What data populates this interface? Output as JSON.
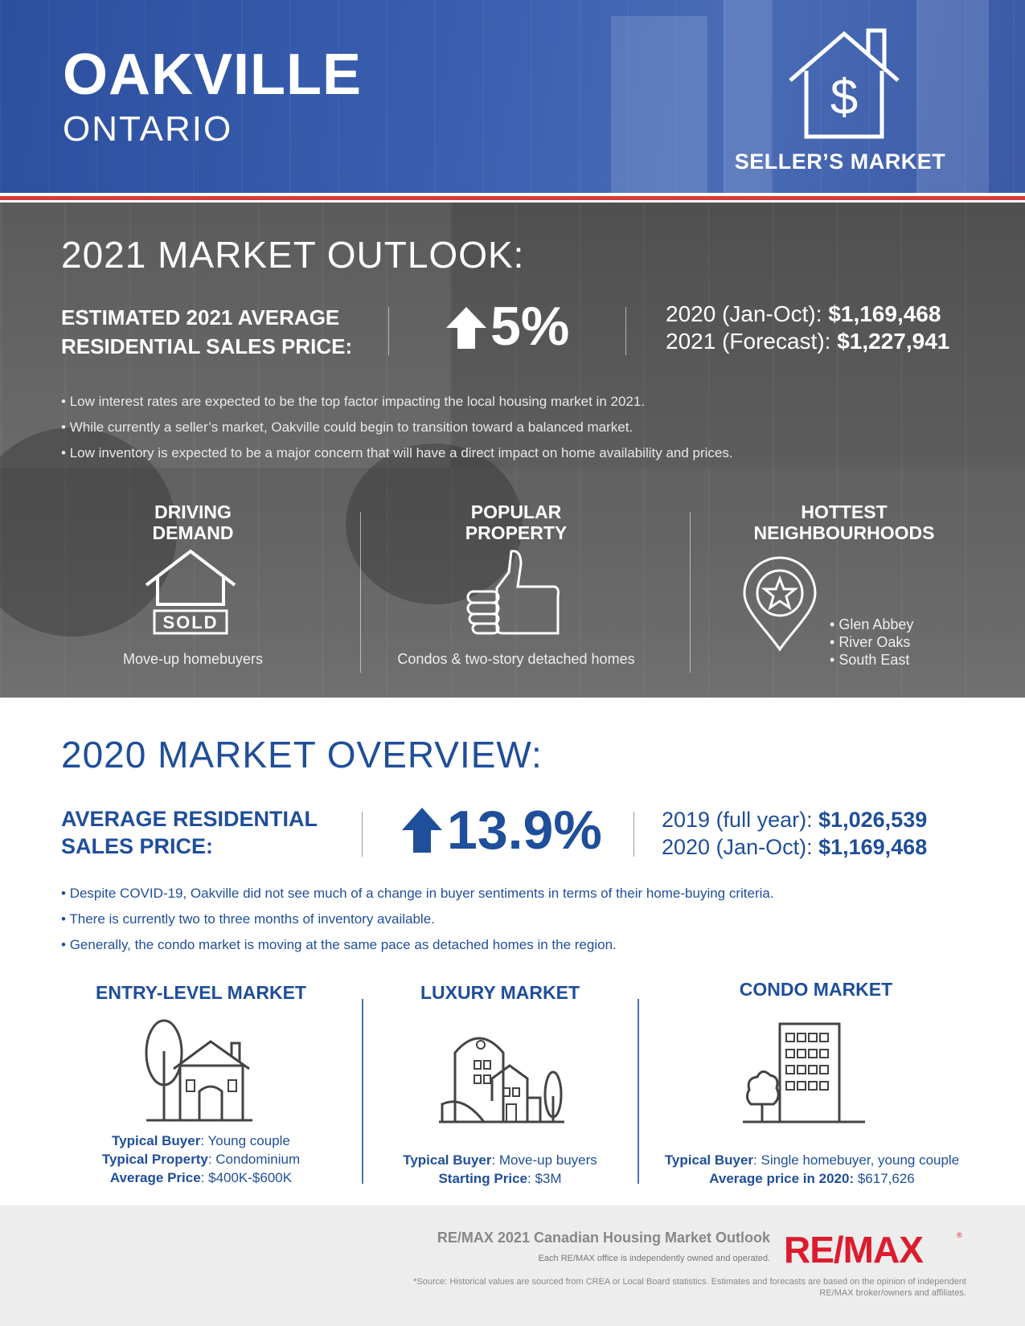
{
  "header": {
    "city": "OAKVILLE",
    "province": "ONTARIO",
    "market_type": "SELLER’S MARKET"
  },
  "outlook": {
    "title": "2021 MARKET OUTLOOK:",
    "label": "ESTIMATED 2021 AVERAGE RESIDENTIAL SALES PRICE:",
    "change": "5%",
    "values": [
      {
        "label": "2020 (Jan-Oct): ",
        "value": "$1,169,468"
      },
      {
        "label": "2021 (Forecast): ",
        "value": "$1,227,941"
      }
    ],
    "bullets": [
      "Low interest rates are expected to be the top factor impacting the local housing market in 2021.",
      "While currently a seller’s market, Oakville could begin to transition toward a balanced market.",
      "Low inventory is expected to be a major concern that will have a direct impact on home availability and prices."
    ],
    "columns": {
      "driving": {
        "heading_1": "DRIVING",
        "heading_2": "DEMAND",
        "sold_label": "SOLD",
        "caption": "Move-up homebuyers"
      },
      "popular": {
        "heading_1": "POPULAR",
        "heading_2": "PROPERTY",
        "caption": "Condos & two-story detached homes"
      },
      "hottest": {
        "heading_1": "HOTTEST",
        "heading_2": "NEIGHBOURHOODS",
        "items": [
          "Glen Abbey",
          "River Oaks",
          "South East"
        ]
      }
    }
  },
  "overview": {
    "title": "2020 MARKET OVERVIEW:",
    "label": "AVERAGE RESIDENTIAL SALES PRICE:",
    "change": "13.9%",
    "values": [
      {
        "label": "2019 (full year): ",
        "value": "$1,026,539"
      },
      {
        "label": "2020 (Jan-Oct): ",
        "value": "$1,169,468"
      }
    ],
    "bullets": [
      "Despite COVID-19, Oakville did not see much of a change in buyer sentiments in terms of their home-buying criteria.",
      "There is currently two to three months of inventory available.",
      "Generally, the condo market is moving at the same pace as detached homes in the region."
    ],
    "markets": {
      "entry": {
        "heading": "ENTRY-LEVEL MARKET",
        "lines": [
          {
            "key": "Typical Buyer",
            "value": ": Young couple"
          },
          {
            "key": "Typical Property",
            "value": ": Condominium"
          },
          {
            "key": "Average Price",
            "value": ": $400K-$600K"
          }
        ]
      },
      "luxury": {
        "heading": "LUXURY MARKET",
        "lines": [
          {
            "key": "Typical Buyer",
            "value": ": Move-up buyers"
          },
          {
            "key": "Starting Price",
            "value": ": $3M"
          }
        ]
      },
      "condo": {
        "heading": "CONDO MARKET",
        "lines": [
          {
            "key": "Typical Buyer",
            "value": ": Single homebuyer, young couple"
          },
          {
            "key": "Average price in 2020:",
            "value": " $617,626"
          }
        ]
      }
    }
  },
  "footer": {
    "title": "RE/MAX 2021 Canadian Housing Market Outlook",
    "note": "Each RE/MAX office is independently owned and operated.",
    "source": "*Source: Historical values are sourced from CREA or Local Board statistics. Estimates and forecasts are based on the opinion of independent RE/MAX broker/owners and affiliates.",
    "logo": "RE/MAX",
    "logo_reg": "®"
  },
  "colors": {
    "brand_blue": "#1f4e9a",
    "header_blue": "#3a5fb0",
    "accent_red": "#d83a3a",
    "logo_red": "#dc1c2e"
  }
}
